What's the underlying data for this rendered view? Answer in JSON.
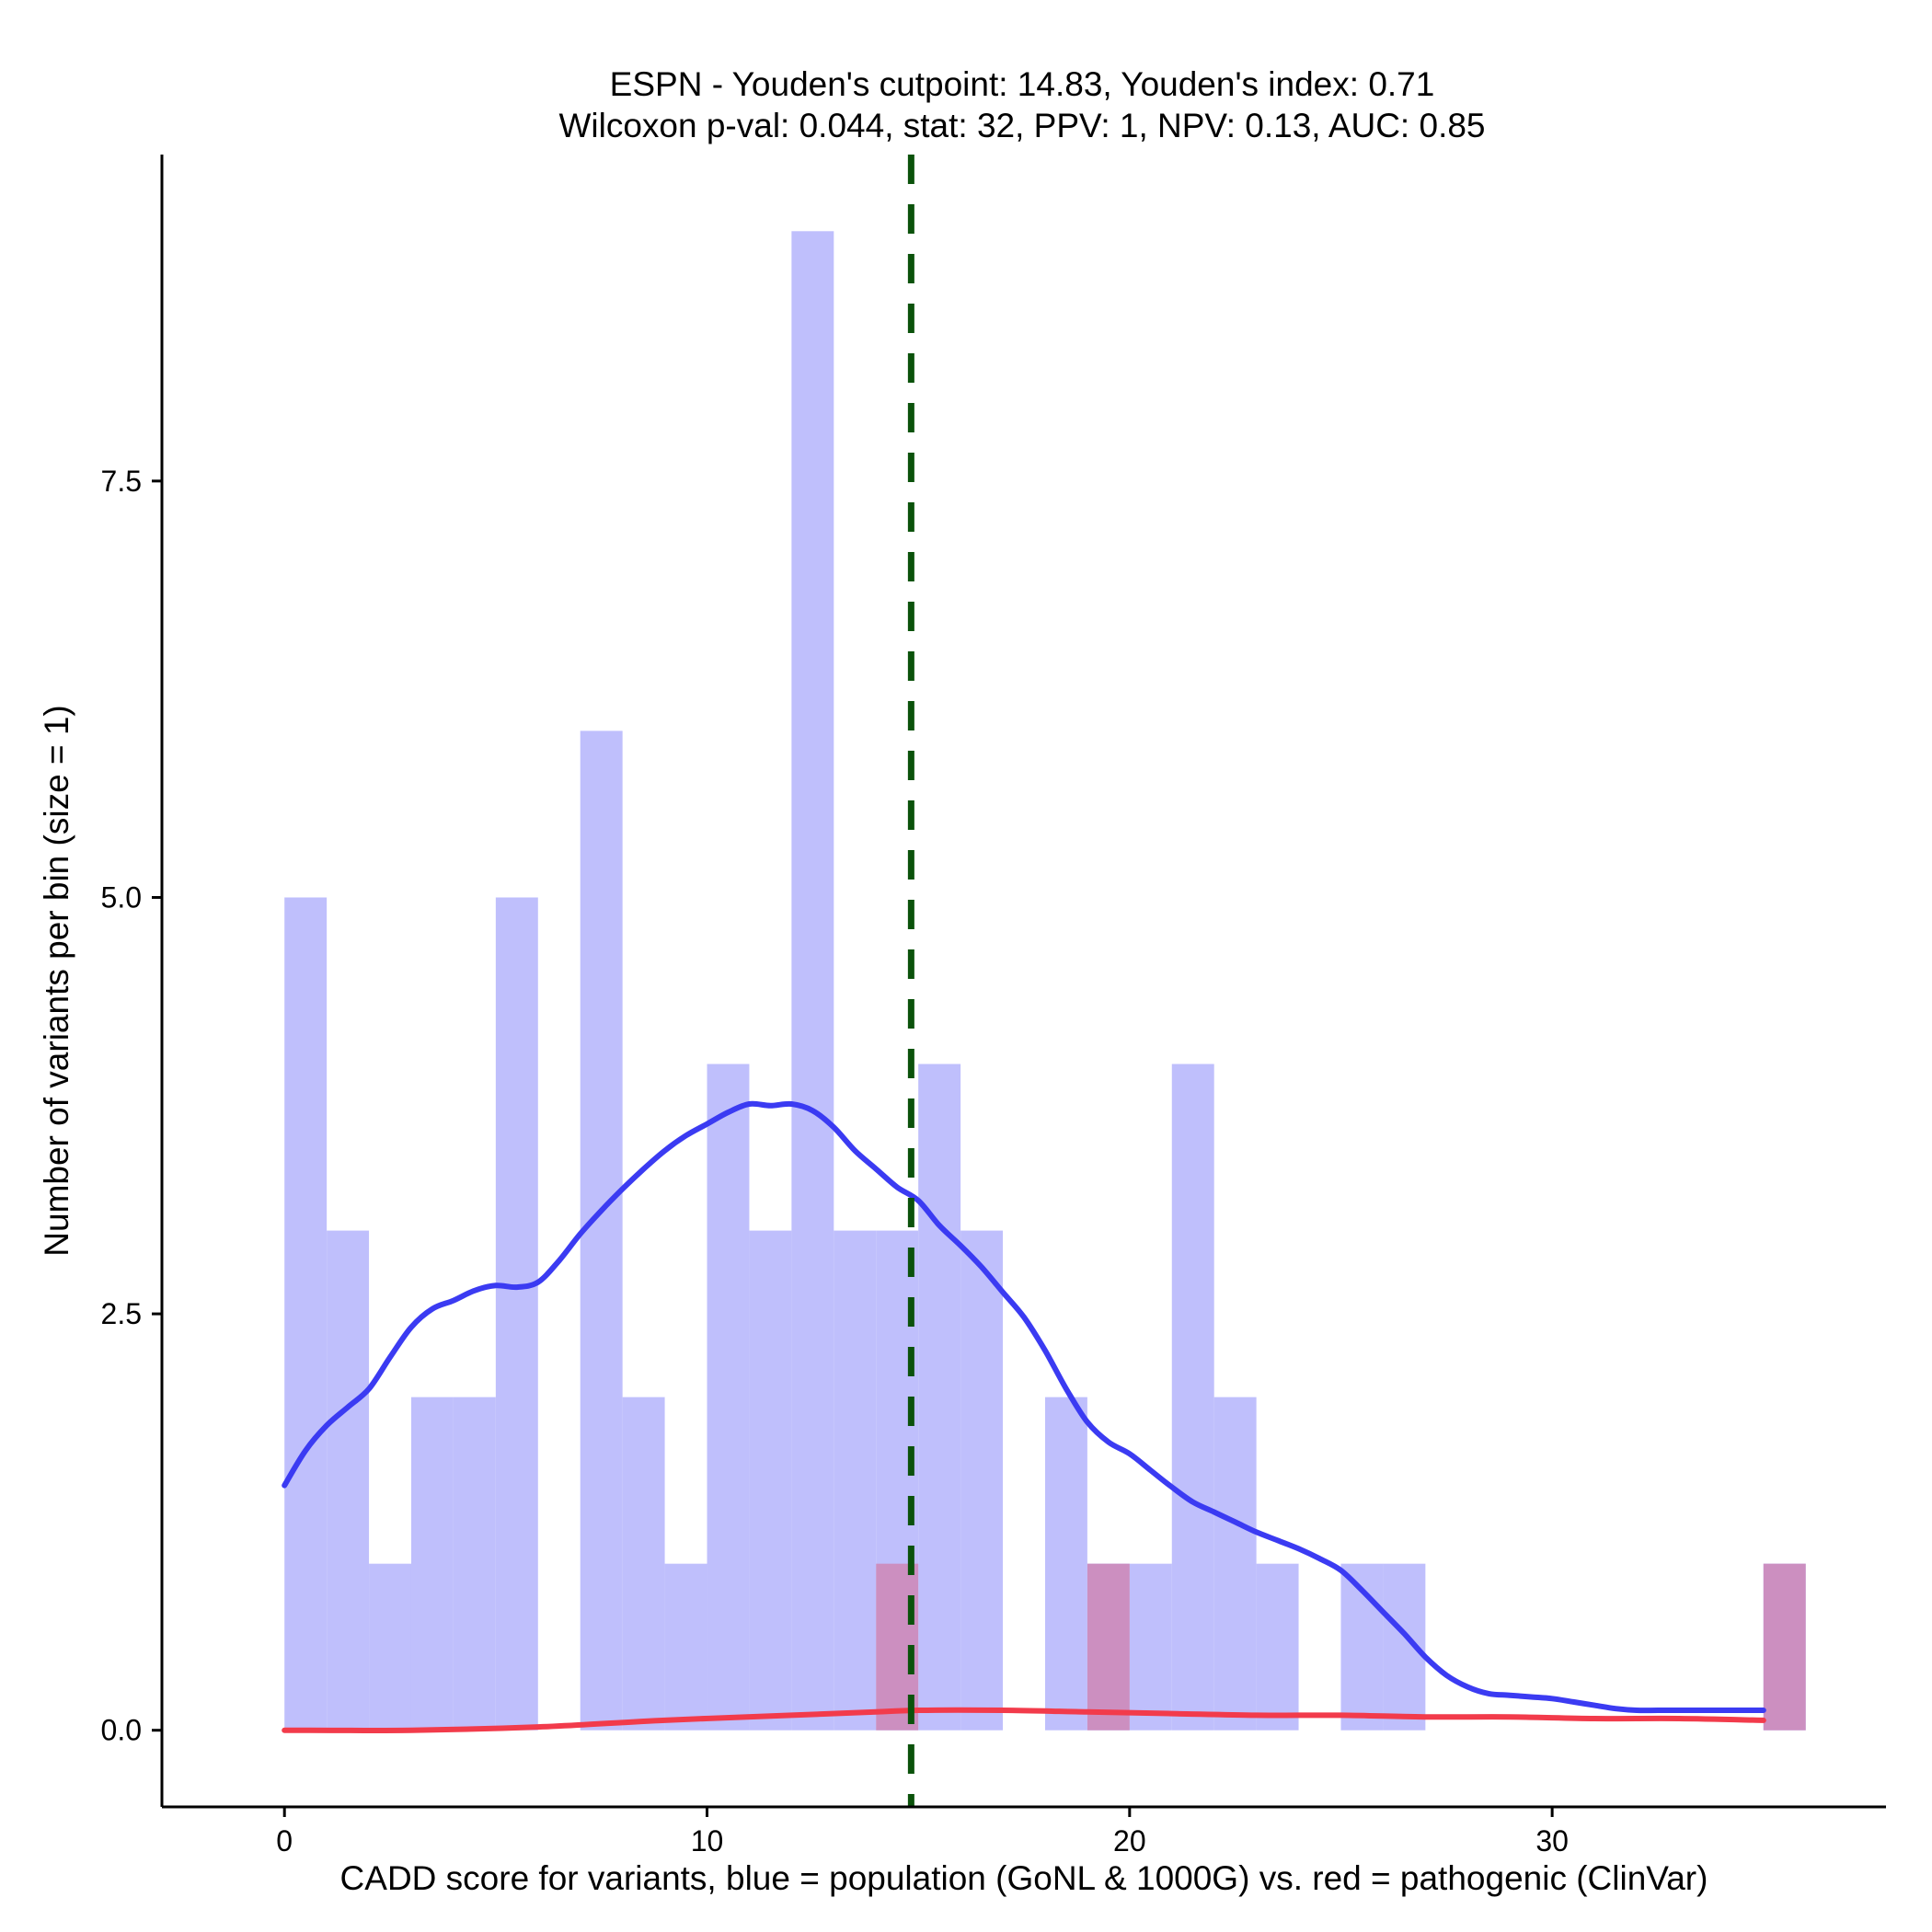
{
  "chart_data": {
    "type": "histogram",
    "title": "ESPN - Youden's cutpoint: 14.83, Youden's index: 0.71",
    "subtitle": "Wilcoxon p-val: 0.044, stat: 32, PPV: 1, NPV: 0.13, AUC: 0.85",
    "xlabel": "CADD score for variants, blue = population (GoNL & 1000G) vs. red = pathogenic (ClinVar)",
    "ylabel": "Number of variants per bin (size = 1)",
    "xlim": [
      -2.9,
      37.9
    ],
    "ylim": [
      -0.46,
      9.46
    ],
    "x_ticks": [
      0,
      10,
      20,
      30
    ],
    "x_tick_labels": [
      "0",
      "10",
      "20",
      "30"
    ],
    "y_ticks": [
      0,
      2.5,
      5,
      7.5
    ],
    "y_tick_labels": [
      "0.0",
      "2.5",
      "5.0",
      "7.5"
    ],
    "bin_width": 1,
    "cutpoint": 14.83,
    "colors": {
      "population_bar": "#bfbffc",
      "pathogenic_bar": "#ffbfbf",
      "overlap_bar": "#cc8fc0",
      "population_line": "#3b3bf2",
      "pathogenic_line": "#f23b4b",
      "cutpoint_line": "#0b520b"
    },
    "series": [
      {
        "name": "population (GoNL & 1000G)",
        "bin_starts": [
          0,
          1,
          2,
          3,
          4,
          5,
          6,
          7,
          8,
          9,
          10,
          11,
          12,
          13,
          14,
          15,
          16,
          17,
          18,
          19,
          20,
          21,
          22,
          23,
          24,
          25,
          26,
          27,
          28,
          29,
          30,
          31,
          32,
          33,
          34,
          35
        ],
        "values": [
          5,
          3,
          1,
          2,
          2,
          5,
          0,
          6,
          2,
          1,
          4,
          3,
          9,
          3,
          3,
          4,
          3,
          0,
          2,
          1,
          1,
          4,
          2,
          1,
          0,
          1,
          1,
          0,
          0,
          0,
          0,
          0,
          0,
          0,
          0,
          1
        ]
      },
      {
        "name": "pathogenic (ClinVar)",
        "bin_starts": [
          14,
          19,
          35
        ],
        "values": [
          1,
          1,
          1
        ]
      }
    ],
    "density_lines": [
      {
        "name": "population density",
        "x": [
          0,
          0.5,
          1,
          1.5,
          2,
          2.5,
          3,
          3.5,
          4,
          4.5,
          5,
          5.5,
          6,
          6.5,
          7,
          7.5,
          8,
          8.5,
          9,
          9.5,
          10,
          10.5,
          11,
          11.5,
          12,
          12.5,
          13,
          13.5,
          14,
          14.5,
          15,
          15.5,
          16,
          16.5,
          17,
          17.5,
          18,
          18.5,
          19,
          19.5,
          20,
          20.5,
          21,
          21.5,
          22,
          22.5,
          23,
          23.5,
          24,
          24.5,
          25,
          25.5,
          26,
          26.5,
          27,
          27.5,
          28,
          28.5,
          29,
          29.5,
          30,
          30.5,
          31,
          31.5,
          32,
          32.5,
          33,
          33.5,
          34,
          34.5,
          35
        ],
        "y": [
          1.47,
          1.68,
          1.83,
          1.94,
          2.05,
          2.24,
          2.42,
          2.53,
          2.58,
          2.64,
          2.67,
          2.66,
          2.69,
          2.82,
          2.98,
          3.12,
          3.25,
          3.37,
          3.48,
          3.57,
          3.64,
          3.71,
          3.76,
          3.75,
          3.76,
          3.72,
          3.62,
          3.48,
          3.37,
          3.26,
          3.18,
          3.03,
          2.91,
          2.78,
          2.63,
          2.48,
          2.28,
          2.05,
          1.85,
          1.73,
          1.66,
          1.56,
          1.46,
          1.37,
          1.31,
          1.25,
          1.19,
          1.14,
          1.09,
          1.03,
          0.96,
          0.84,
          0.71,
          0.58,
          0.44,
          0.33,
          0.26,
          0.22,
          0.21,
          0.2,
          0.19,
          0.17,
          0.15,
          0.13,
          0.12,
          0.12,
          0.12,
          0.12,
          0.12,
          0.12,
          0.12
        ]
      },
      {
        "name": "pathogenic density",
        "x": [
          0,
          3,
          6,
          9,
          12,
          14,
          15,
          17,
          19,
          21,
          23,
          25,
          27,
          29,
          31,
          33,
          35
        ],
        "y": [
          0,
          0,
          0.02,
          0.06,
          0.09,
          0.11,
          0.12,
          0.12,
          0.11,
          0.1,
          0.09,
          0.09,
          0.08,
          0.08,
          0.07,
          0.07,
          0.06
        ]
      }
    ]
  }
}
